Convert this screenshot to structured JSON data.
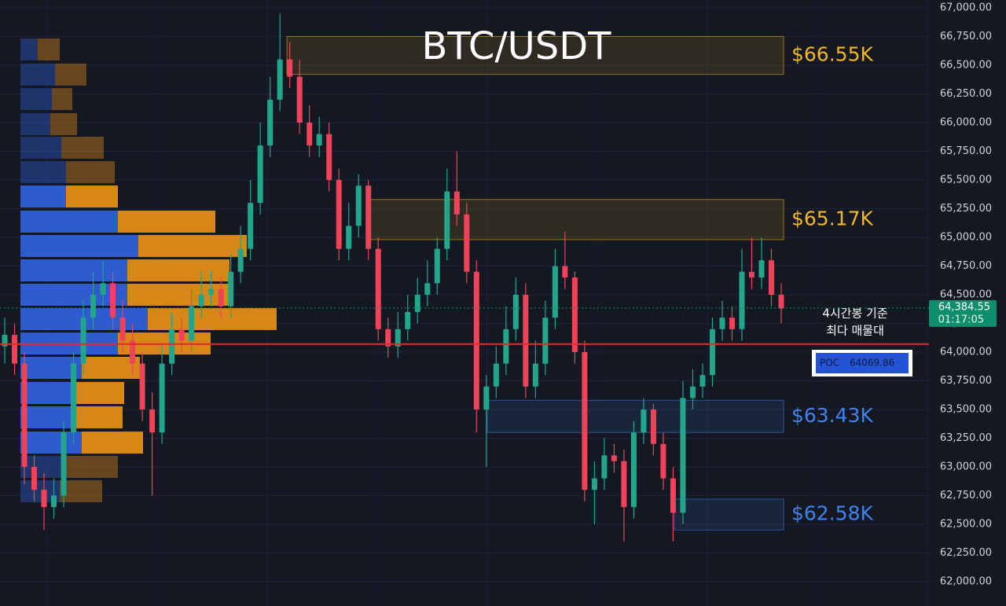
{
  "chart_data": {
    "type": "candlestick",
    "title": "BTC/USDT",
    "ylim": [
      61788,
      67068
    ],
    "yticks": [
      {
        "value": 62000,
        "label": "62,000.00"
      },
      {
        "value": 62250,
        "label": "62,250.00"
      },
      {
        "value": 62500,
        "label": "62,500.00"
      },
      {
        "value": 62750,
        "label": "62,750.00"
      },
      {
        "value": 63000,
        "label": "63,000.00"
      },
      {
        "value": 63250,
        "label": "63,250.00"
      },
      {
        "value": 63500,
        "label": "63,500.00"
      },
      {
        "value": 63750,
        "label": "63,750.00"
      },
      {
        "value": 64000,
        "label": "64,000.00"
      },
      {
        "value": 64250,
        "label": "64,250.00"
      },
      {
        "value": 64500,
        "label": "64,500.00"
      },
      {
        "value": 64750,
        "label": "64,750.00"
      },
      {
        "value": 65000,
        "label": "65,000.00"
      },
      {
        "value": 65250,
        "label": "65,250.00"
      },
      {
        "value": 65500,
        "label": "65,500.00"
      },
      {
        "value": 65750,
        "label": "65,750.00"
      },
      {
        "value": 66000,
        "label": "66,000.00"
      },
      {
        "value": 66250,
        "label": "66,250.00"
      },
      {
        "value": 66500,
        "label": "66,500.00"
      },
      {
        "value": 66750,
        "label": "66,750.00"
      },
      {
        "value": 67000,
        "label": "67,000.00"
      }
    ],
    "grid": true,
    "up_color": "#22a68b",
    "down_color": "#f0435a",
    "candles": {
      "open": [
        64050,
        64150,
        63900,
        63000,
        62800,
        62650,
        62750,
        63300,
        63900,
        64300,
        64500,
        64600,
        64300,
        64100,
        63900,
        63500,
        63300,
        63900,
        64200,
        64100,
        64400,
        64500,
        64550,
        64400,
        64700,
        64900,
        65300,
        65800,
        66200,
        66550,
        66400,
        66000,
        65800,
        65900,
        65500,
        64900,
        65100,
        65450,
        64900,
        64200,
        64050,
        64200,
        64350,
        64500,
        64600,
        64900,
        65400,
        65200,
        64700,
        63500,
        63700,
        63900,
        64200,
        64500,
        63700,
        63900,
        64300,
        64750,
        64650,
        64000,
        62800,
        62900,
        63100,
        63050,
        62650,
        63300,
        63500,
        63200,
        62900,
        62600,
        63600,
        63700,
        63800,
        64200,
        64300,
        64200,
        64700,
        64650,
        64800,
        64500
      ],
      "high": [
        64300,
        64250,
        64000,
        63100,
        62950,
        62900,
        63400,
        64000,
        64450,
        64700,
        64800,
        64700,
        64450,
        64250,
        64000,
        63650,
        64050,
        64350,
        64300,
        64550,
        64700,
        64700,
        64650,
        64850,
        65100,
        65500,
        66000,
        66400,
        66950,
        66700,
        66550,
        66150,
        66050,
        66000,
        65600,
        65300,
        65550,
        65500,
        65000,
        64300,
        64350,
        64500,
        64650,
        64800,
        65000,
        65600,
        65750,
        65300,
        64800,
        63800,
        64050,
        64400,
        64650,
        64600,
        64100,
        64450,
        64900,
        65050,
        64700,
        64100,
        63050,
        63250,
        63200,
        63150,
        63400,
        63600,
        63550,
        63300,
        63000,
        63750,
        63850,
        63900,
        64300,
        64450,
        64400,
        64900,
        65000,
        65000,
        64900,
        64600
      ],
      "low": [
        63900,
        63800,
        62850,
        62700,
        62450,
        62550,
        62650,
        63200,
        63800,
        64200,
        64400,
        64200,
        64000,
        63800,
        63400,
        62750,
        63200,
        63800,
        64000,
        64000,
        64300,
        64400,
        64300,
        64300,
        64600,
        64800,
        65200,
        65700,
        66100,
        66300,
        65900,
        65700,
        65700,
        65400,
        64800,
        64800,
        65000,
        64800,
        64100,
        63950,
        63950,
        64100,
        64250,
        64400,
        64500,
        64800,
        65100,
        64600,
        63300,
        63000,
        63600,
        63800,
        64100,
        63600,
        63600,
        63800,
        64200,
        64550,
        63900,
        62700,
        62500,
        62800,
        62950,
        62350,
        62550,
        63200,
        63100,
        62800,
        62350,
        62500,
        63500,
        63600,
        63700,
        64100,
        64100,
        64100,
        64550,
        64550,
        64400,
        64250
      ],
      "close": [
        64150,
        63900,
        63000,
        62800,
        62650,
        62750,
        63300,
        63900,
        64300,
        64500,
        64600,
        64300,
        64100,
        63900,
        63500,
        63300,
        63900,
        64200,
        64100,
        64400,
        64500,
        64550,
        64400,
        64700,
        64900,
        65300,
        65800,
        66200,
        66550,
        66400,
        66000,
        65800,
        65900,
        65500,
        64900,
        65100,
        65450,
        64900,
        64200,
        64050,
        64200,
        64350,
        64500,
        64600,
        64900,
        65400,
        65200,
        64700,
        63500,
        63700,
        63900,
        64200,
        64500,
        63700,
        63900,
        64300,
        64750,
        64650,
        64000,
        62800,
        62900,
        63100,
        63050,
        62650,
        63300,
        63500,
        63200,
        62900,
        62600,
        63600,
        63700,
        63800,
        64200,
        64300,
        64200,
        64700,
        64650,
        64800,
        64500,
        64380
      ]
    },
    "volume_profile": {
      "prices": [
        66637,
        66418,
        66205,
        65986,
        65781,
        65568,
        65356,
        65137,
        64925,
        64712,
        64500,
        64288,
        64075,
        63863,
        63644,
        63432,
        63212,
        63000,
        62788
      ],
      "buy": [
        22,
        44,
        40,
        38,
        52,
        58,
        58,
        124,
        150,
        136,
        136,
        162,
        124,
        78,
        64,
        64,
        78,
        58,
        50
      ],
      "sell": [
        28,
        40,
        26,
        34,
        54,
        62,
        66,
        124,
        138,
        130,
        132,
        164,
        118,
        74,
        68,
        66,
        78,
        66,
        54
      ],
      "in_value_area": [
        false,
        false,
        false,
        false,
        false,
        false,
        true,
        true,
        true,
        true,
        true,
        true,
        true,
        true,
        true,
        true,
        true,
        false,
        false
      ],
      "buy_color": "#2f5fd8",
      "sell_color": "#e08d17"
    },
    "zones": [
      {
        "label": "$66.55K",
        "top": 66750,
        "bottom": 66420,
        "color": "#f5b623"
      },
      {
        "label": "$65.17K",
        "top": 65330,
        "bottom": 64980,
        "color": "#f5b623"
      },
      {
        "label": "$63.43K",
        "top": 63580,
        "bottom": 63300,
        "color": "#3f83f0"
      },
      {
        "label": "$62.58K",
        "top": 62720,
        "bottom": 62450,
        "color": "#3f83f0"
      }
    ],
    "poc": {
      "label": "POC",
      "value": 64069.86,
      "color": "#e02b2b"
    },
    "poc_note": [
      "4시간봉 기준",
      "최다 매물대"
    ],
    "last_price": {
      "value": 64384.55,
      "label": "64,384.55",
      "countdown": "01:17:05",
      "color": "#0e8f6c"
    }
  }
}
